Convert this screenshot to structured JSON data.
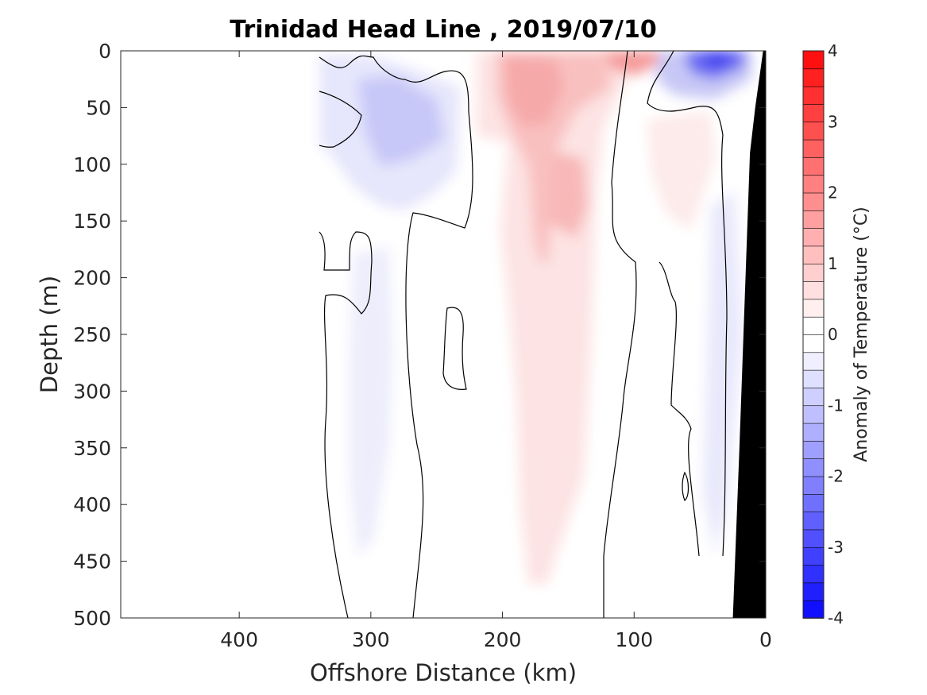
{
  "chart_data": {
    "type": "heatmap",
    "title": "Trinidad Head Line , 2019/07/10",
    "xlabel": "Offshore Distance (km)",
    "ylabel": "Depth (m)",
    "colorbar_label": "Anomaly of Temperature (°C)",
    "xlim": [
      490,
      0
    ],
    "ylim": [
      500,
      0
    ],
    "x_reversed": true,
    "y_reversed": true,
    "xticks": [
      400,
      300,
      200,
      100,
      0
    ],
    "yticks": [
      0,
      50,
      100,
      150,
      200,
      250,
      300,
      350,
      400,
      450,
      500
    ],
    "clim": [
      -4,
      4
    ],
    "colorbar_ticks": [
      -4,
      -3,
      -2,
      -1,
      0,
      1,
      2,
      3,
      4
    ],
    "colorbar_step": 0.25,
    "colormap": {
      "low": "#0000ff",
      "mid": "#ffffff",
      "high": "#ff0000"
    },
    "zero_contour_color": "#000000",
    "land_color": "#000000",
    "section_extent_km": [
      340,
      0
    ],
    "bottom_profile": [
      {
        "x": 2,
        "depth": 0
      },
      {
        "x": 8,
        "depth": 50
      },
      {
        "x": 12,
        "depth": 90
      },
      {
        "x": 20,
        "depth": 350
      },
      {
        "x": 25,
        "depth": 500
      }
    ],
    "anomaly_features": [
      {
        "x": [
          180,
          0
        ],
        "depth": [
          0,
          500
        ],
        "anomaly": 0
      },
      {
        "x": [
          180,
          100
        ],
        "depth": [
          0,
          80
        ],
        "anomaly": 1.2
      },
      {
        "x": [
          190,
          135
        ],
        "depth": [
          100,
          330
        ],
        "anomaly": 1.0
      },
      {
        "x": [
          215,
          135
        ],
        "depth": [
          20,
          500
        ],
        "anomaly": 0.5
      },
      {
        "x": [
          120,
          75
        ],
        "depth": [
          0,
          20
        ],
        "anomaly": 1.5
      },
      {
        "x": [
          70,
          20
        ],
        "depth": [
          0,
          50
        ],
        "anomaly": -2.5
      },
      {
        "x": [
          320,
          240
        ],
        "depth": [
          20,
          150
        ],
        "anomaly": -0.8
      },
      {
        "x": [
          345,
          230
        ],
        "depth": [
          0,
          200
        ],
        "anomaly": -0.3
      },
      {
        "x": [
          320,
          290
        ],
        "depth": [
          310,
          490
        ],
        "anomaly": -0.3
      },
      {
        "x": [
          60,
          35
        ],
        "depth": [
          200,
          450
        ],
        "anomaly": -0.3
      }
    ]
  }
}
